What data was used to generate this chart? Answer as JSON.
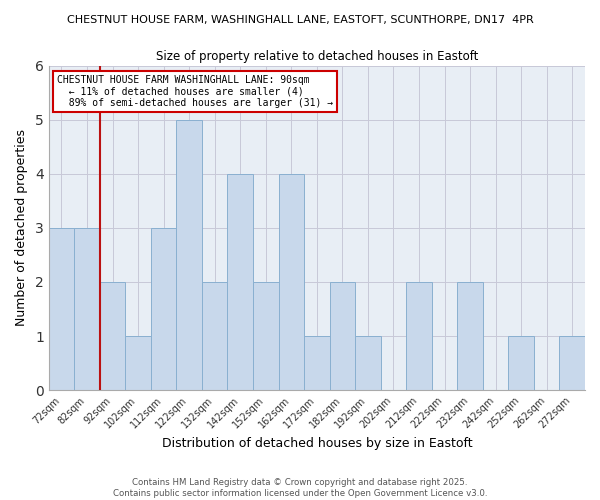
{
  "title_line1": "CHESTNUT HOUSE FARM, WASHINGHALL LANE, EASTOFT, SCUNTHORPE, DN17  4PR",
  "title_line2": "Size of property relative to detached houses in Eastoft",
  "xlabel": "Distribution of detached houses by size in Eastoft",
  "ylabel": "Number of detached properties",
  "bin_starts": [
    72,
    82,
    92,
    102,
    112,
    122,
    132,
    142,
    152,
    162,
    172,
    182,
    192,
    202,
    212,
    222,
    232,
    242,
    252,
    262,
    272
  ],
  "counts": [
    3,
    3,
    2,
    1,
    3,
    5,
    2,
    4,
    2,
    4,
    1,
    2,
    1,
    0,
    2,
    0,
    2,
    0,
    1,
    0,
    1
  ],
  "bar_color": "#c8d8eb",
  "bar_edge_color": "#8ab0d0",
  "reference_line_x": 92,
  "reference_line_color": "#bb1111",
  "ylim": [
    0,
    6
  ],
  "yticks": [
    0,
    1,
    2,
    3,
    4,
    5,
    6
  ],
  "background_color": "#ffffff",
  "plot_bg_color": "#e8eef5",
  "grid_color": "#c8c8d8",
  "legend_title": "CHESTNUT HOUSE FARM WASHINGHALL LANE: 90sqm",
  "legend_line1": "← 11% of detached houses are smaller (4)",
  "legend_line2": "89% of semi-detached houses are larger (31) →",
  "legend_box_color": "#cc0000",
  "footer_line1": "Contains HM Land Registry data © Crown copyright and database right 2025.",
  "footer_line2": "Contains public sector information licensed under the Open Government Licence v3.0.",
  "bin_width": 10
}
